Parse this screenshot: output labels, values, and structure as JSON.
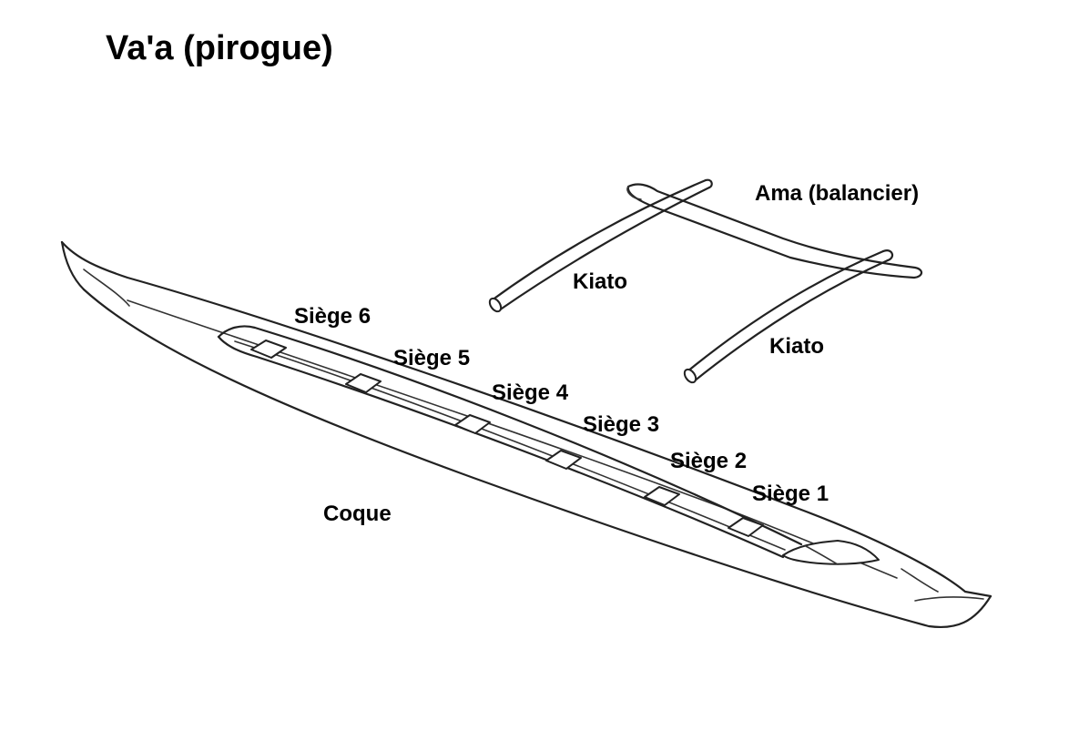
{
  "title": "Va'a (pirogue)",
  "labels": {
    "ama": "Ama (balancier)",
    "kiato_1": "Kiato",
    "kiato_2": "Kiato",
    "seat_6": "Siège 6",
    "seat_5": "Siège 5",
    "seat_4": "Siège 4",
    "seat_3": "Siège 3",
    "seat_2": "Siège 2",
    "seat_1": "Siège 1",
    "hull": "Coque"
  }
}
